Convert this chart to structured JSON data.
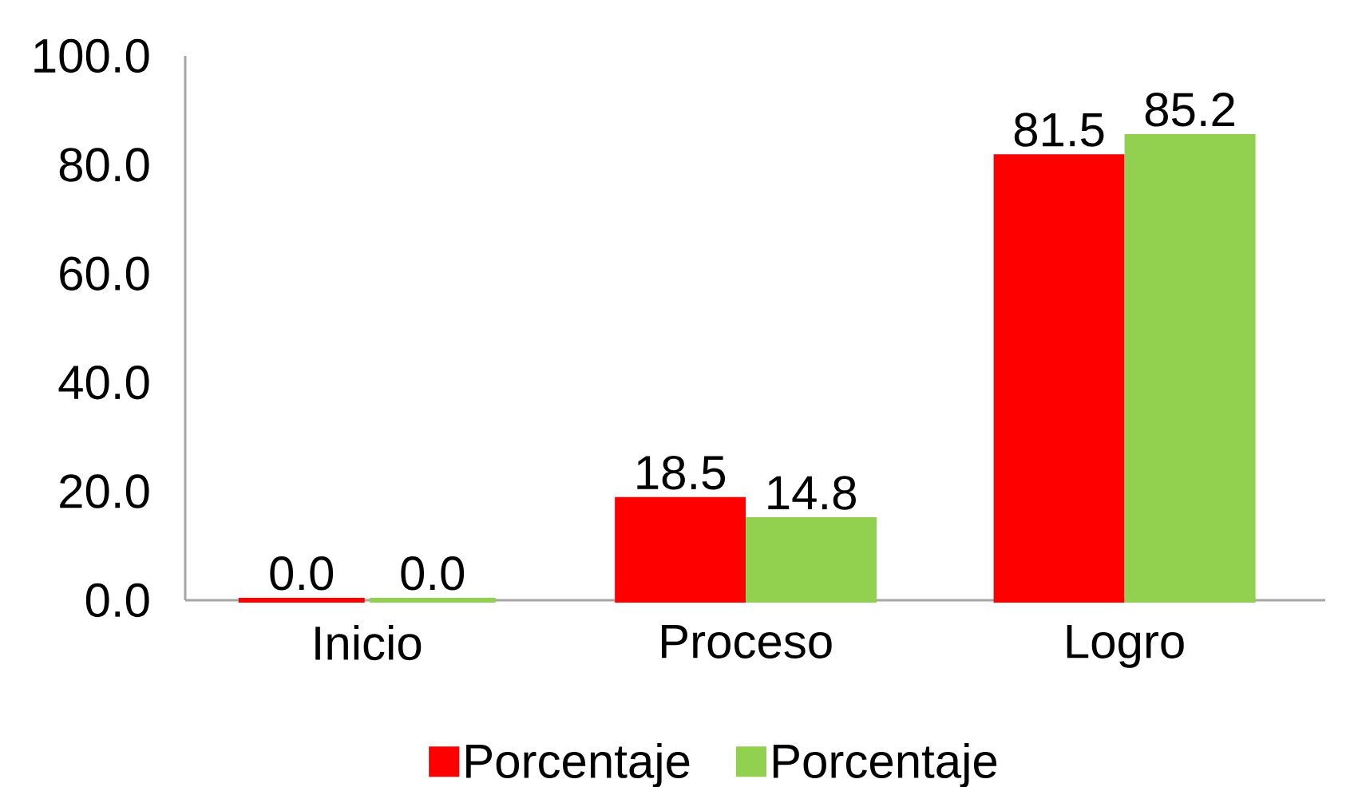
{
  "chart_data": {
    "type": "bar",
    "categories": [
      "Inicio",
      "Proceso",
      "Logro"
    ],
    "series": [
      {
        "name": "Porcentaje",
        "color": "#ff0000",
        "values": [
          0,
          18.5,
          81.5
        ],
        "value_labels": [
          "0.0",
          "18.5",
          "81.5"
        ]
      },
      {
        "name": "Porcentaje",
        "color": "#92d050",
        "values": [
          0,
          14.8,
          85.2
        ],
        "value_labels": [
          "0.0",
          "14.8",
          "85.2"
        ]
      }
    ],
    "ylim": [
      0,
      100
    ],
    "yticks": [
      {
        "value": 0,
        "label": "0.0"
      },
      {
        "value": 20,
        "label": "20.0"
      },
      {
        "value": 40,
        "label": "40.0"
      },
      {
        "value": 60,
        "label": "60.0"
      },
      {
        "value": 80,
        "label": "80.0"
      },
      {
        "value": 100,
        "label": "100.0"
      }
    ],
    "legend": "bottom"
  }
}
